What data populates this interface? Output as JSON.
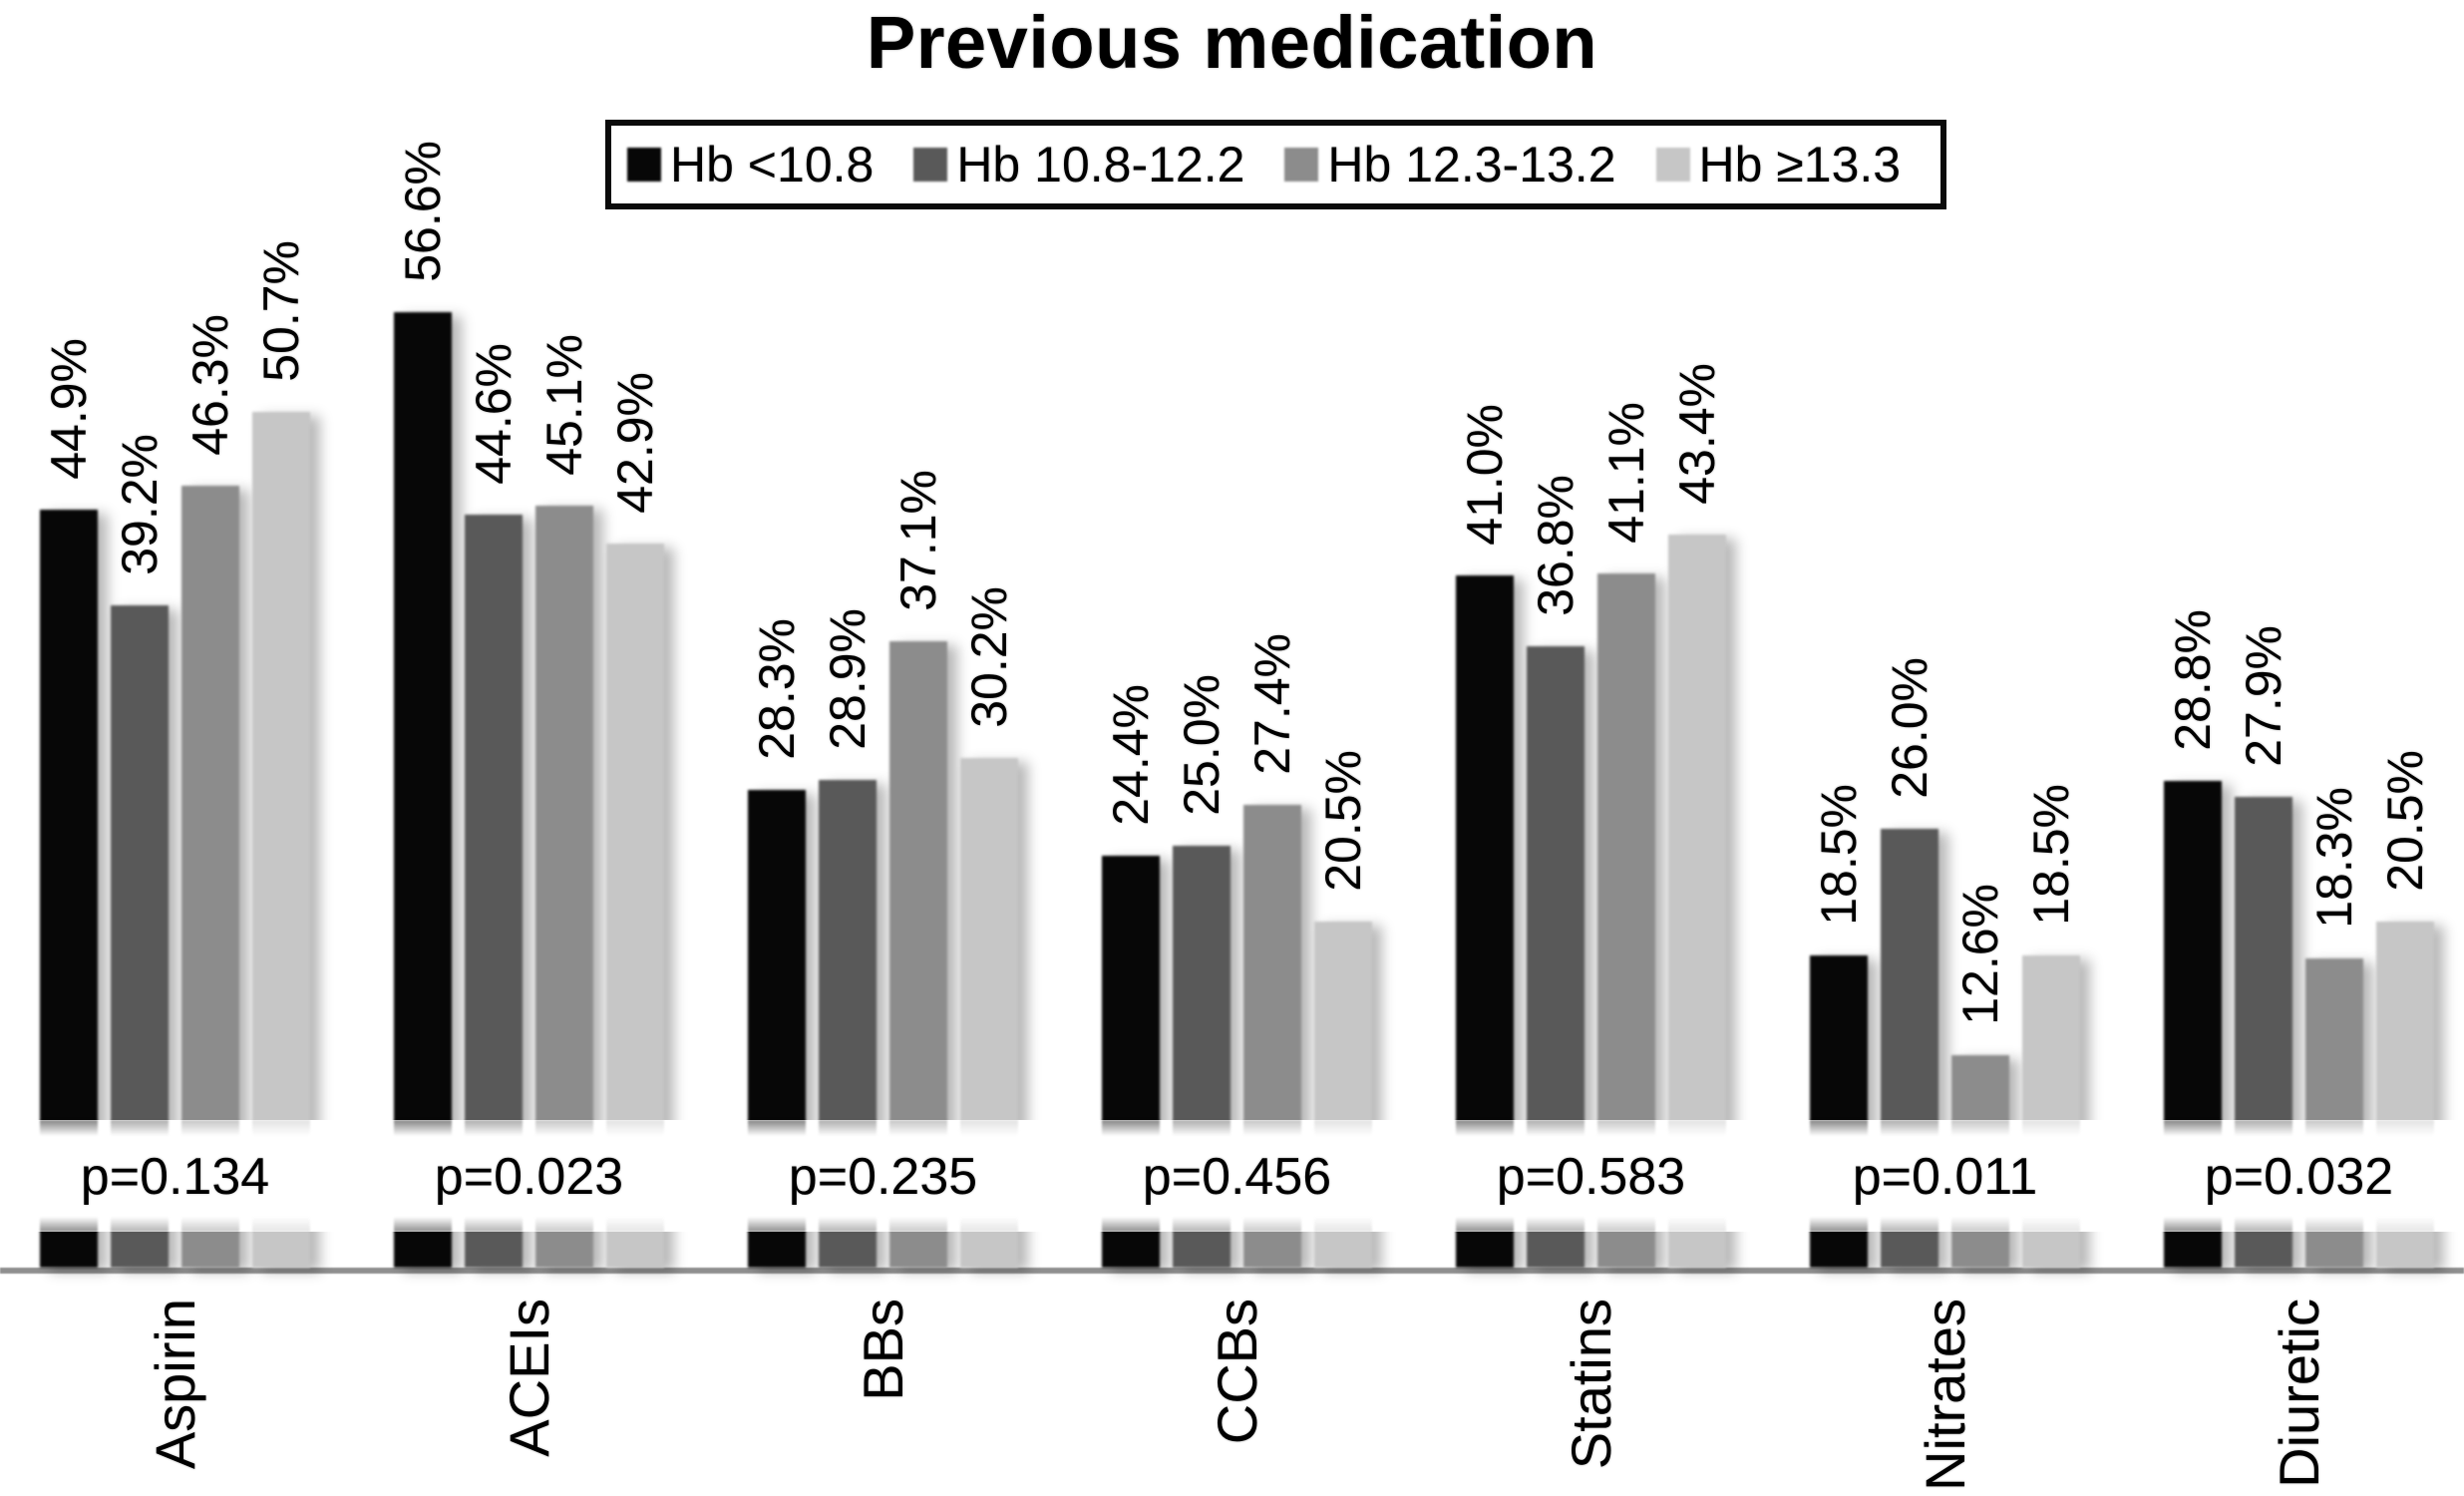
{
  "title": "Previous medication",
  "chart_data": {
    "type": "bar",
    "title": "Previous medication",
    "categories": [
      "Aspirin",
      "ACEIs",
      "BBs",
      "CCBs",
      "Statins",
      "Nitrates",
      "Diuretic"
    ],
    "series": [
      {
        "name": "Hb <10.8",
        "color": "#070707",
        "values": [
          44.9,
          56.6,
          28.3,
          24.4,
          41.0,
          18.5,
          28.8
        ]
      },
      {
        "name": "Hb 10.8-12.2",
        "color": "#595959",
        "values": [
          39.2,
          44.6,
          28.9,
          25.0,
          36.8,
          26.0,
          27.9
        ]
      },
      {
        "name": "Hb 12.3-13.2",
        "color": "#8c8c8c",
        "values": [
          46.3,
          45.1,
          37.1,
          27.4,
          41.1,
          12.6,
          18.3
        ]
      },
      {
        "name": "Hb ≥13.3",
        "color": "#c6c6c6",
        "values": [
          50.7,
          42.9,
          30.2,
          20.5,
          43.4,
          18.5,
          20.5
        ]
      }
    ],
    "p_labels": [
      "p=0.134",
      "p=0.023",
      "p=0.235",
      "p=0.456",
      "p=0.583",
      "p=0.011",
      "p=0.032"
    ],
    "value_label_format": "{value}%",
    "value_labels_rotated": true,
    "category_labels_rotated": true,
    "legend_position": "top",
    "grid": false,
    "y_axis_ticks_visible": false,
    "axis_break_at_bottom": true,
    "ylim": [
      0,
      60
    ],
    "axis_line_color": "#8f8f8f",
    "background": "#ffffff",
    "text_color": "#000000"
  }
}
